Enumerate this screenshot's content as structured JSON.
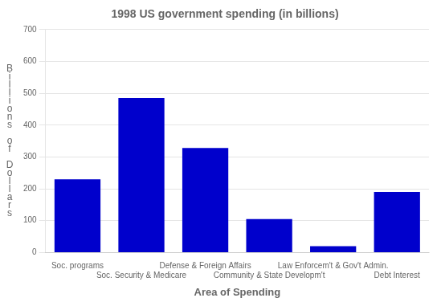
{
  "chart_data": {
    "type": "bar",
    "title": "1998 US government spending (in billions)",
    "categories": [
      "Soc. programs",
      "Soc. Security & Medicare",
      "Defense & Foreign Affairs",
      "Community & State Developm't",
      "Law Enforcem't & Gov't Admin.",
      "Debt Interest"
    ],
    "values": [
      230,
      485,
      328,
      105,
      20,
      190
    ],
    "color": "#0000cc",
    "xlabel": "Area of Spending",
    "ylabel": "B\ni\nl\nl\ni\no\nn\ns\n\no\nf\n\nD\no\nl\nl\na\nr\ns",
    "ylim": [
      0,
      700
    ],
    "yticks": [
      0,
      100,
      200,
      300,
      400,
      500,
      600,
      700
    ],
    "grid": true
  }
}
